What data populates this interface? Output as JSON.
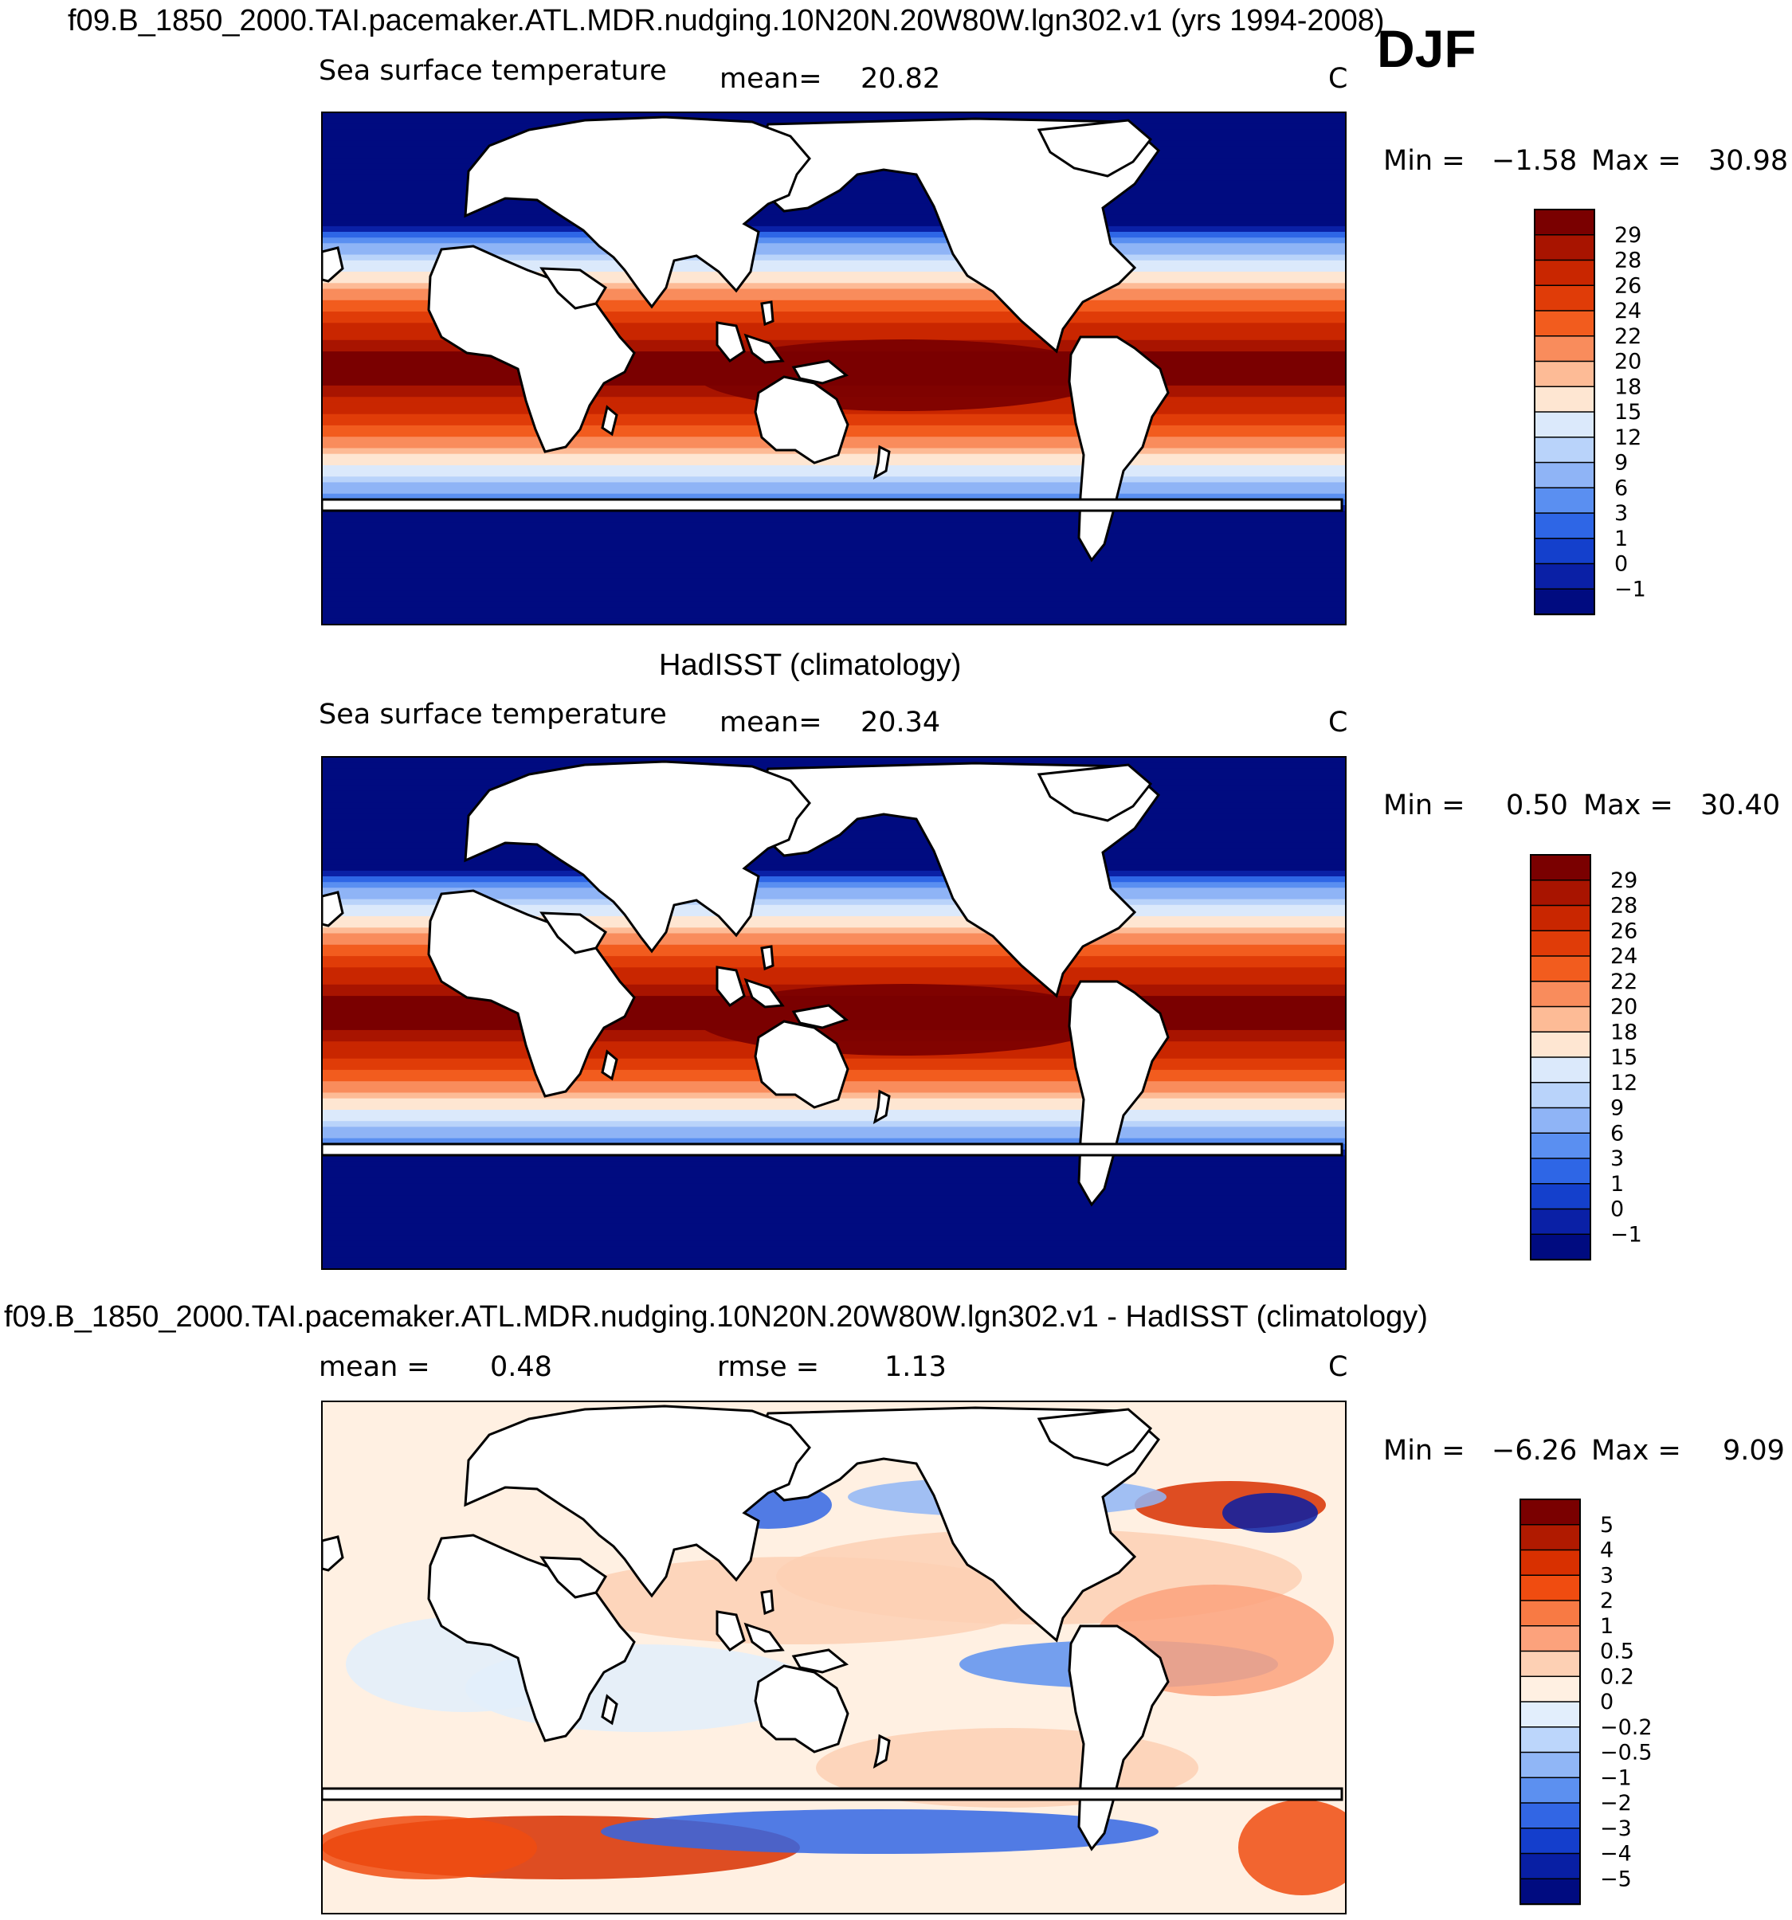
{
  "figure": {
    "season": "DJF",
    "units": "C"
  },
  "chart_data": [
    {
      "type": "heatmap",
      "title": "f09.B_1850_2000.TAI.pacemaker.ATL.MDR.nudging.10N20N.20W80W.lgn302.v1 (yrs 1994-2008)",
      "variable": "Sea surface temperature",
      "mean_label": "mean=",
      "mean": "20.82",
      "min_label": "Min =",
      "min": "−1.58",
      "max_label": "Max =",
      "max": "30.98",
      "units": "C",
      "colorbar_ticks": [
        "29",
        "28",
        "26",
        "24",
        "22",
        "20",
        "18",
        "15",
        "12",
        "9",
        "6",
        "3",
        "1",
        "0",
        "−1"
      ],
      "colors": [
        "#7a0000",
        "#a81400",
        "#c92600",
        "#e03c08",
        "#f25c1e",
        "#f98c5c",
        "#fdbb96",
        "#fee6d2",
        "#dbe9fb",
        "#b9d3fa",
        "#8fb4f6",
        "#5a8ff1",
        "#2e66e6",
        "#1440cc",
        "#0a20a6",
        "#000b80"
      ]
    },
    {
      "type": "heatmap",
      "title": "HadISST (climatology)",
      "variable": "Sea surface temperature",
      "mean_label": "mean=",
      "mean": "20.34",
      "min_label": "Min =",
      "min": "0.50",
      "max_label": "Max =",
      "max": "30.40",
      "units": "C",
      "colorbar_ticks": [
        "29",
        "28",
        "26",
        "24",
        "22",
        "20",
        "18",
        "15",
        "12",
        "9",
        "6",
        "3",
        "1",
        "0",
        "−1"
      ],
      "colors": [
        "#7a0000",
        "#a81400",
        "#c92600",
        "#e03c08",
        "#f25c1e",
        "#f98c5c",
        "#fdbb96",
        "#fee6d2",
        "#dbe9fb",
        "#b9d3fa",
        "#8fb4f6",
        "#5a8ff1",
        "#2e66e6",
        "#1440cc",
        "#0a20a6",
        "#000b80"
      ]
    },
    {
      "type": "heatmap",
      "title": "f09.B_1850_2000.TAI.pacemaker.ATL.MDR.nudging.10N20N.20W80W.lgn302.v1 - HadISST (climatology)",
      "mean_label": "mean =",
      "mean": "0.48",
      "rmse_label": "rmse =",
      "rmse": "1.13",
      "min_label": "Min =",
      "min": "−6.26",
      "max_label": "Max =",
      "max": "9.09",
      "units": "C",
      "colorbar_ticks": [
        "5",
        "4",
        "3",
        "2",
        "1",
        "0.5",
        "0.2",
        "0",
        "−0.2",
        "−0.5",
        "−1",
        "−2",
        "−3",
        "−4",
        "−5"
      ],
      "colors": [
        "#7a0000",
        "#b01a00",
        "#d83000",
        "#f04c10",
        "#f87a44",
        "#fca27c",
        "#fdd0b4",
        "#fff0e2",
        "#e2eefc",
        "#bcd6fb",
        "#90b6f6",
        "#5c90f0",
        "#3266e4",
        "#143ecc",
        "#081fa4",
        "#000b80"
      ]
    }
  ]
}
